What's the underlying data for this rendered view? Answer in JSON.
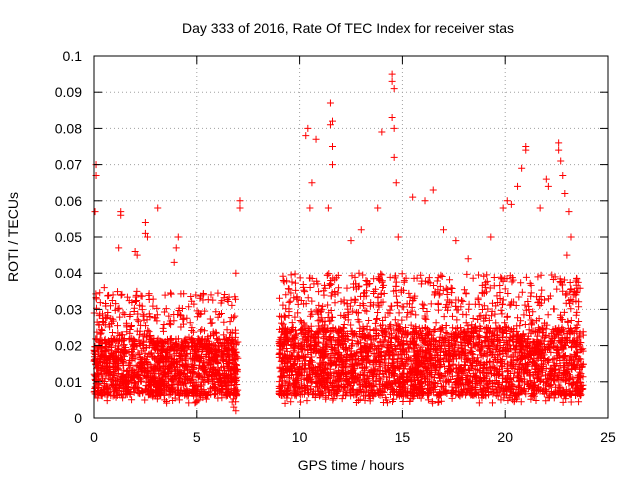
{
  "chart_data": {
    "type": "scatter",
    "title": "Day 333 of 2016, Rate Of TEC Index for receiver stas",
    "xlabel": "GPS time / hours",
    "ylabel": "ROTI / TECUs",
    "xlim": [
      0,
      25
    ],
    "ylim": [
      0,
      0.1
    ],
    "x_ticks": [
      0,
      5,
      10,
      15,
      20,
      25
    ],
    "x_tick_labels": [
      "0",
      "5",
      "10",
      "15",
      "20",
      "25"
    ],
    "y_ticks": [
      0,
      0.01,
      0.02,
      0.03,
      0.04,
      0.05,
      0.06,
      0.07,
      0.08,
      0.09,
      0.1
    ],
    "y_tick_labels": [
      "0",
      "0.01",
      "0.02",
      "0.03",
      "0.04",
      "0.05",
      "0.06",
      "0.07",
      "0.08",
      "0.09",
      "0.1"
    ],
    "grid": true,
    "marker": "+",
    "marker_color": "#ff0000",
    "series": [
      {
        "name": "ROTI",
        "segments": [
          {
            "x_start": 0.0,
            "x_end": 7.0,
            "baseline_min": 0.006,
            "baseline_max": 0.022,
            "typical_max": 0.035
          },
          {
            "x_start": 9.0,
            "x_end": 23.8,
            "baseline_min": 0.006,
            "baseline_max": 0.025,
            "typical_max": 0.04
          }
        ],
        "notable_points": [
          {
            "x": 0.1,
            "y": 0.07
          },
          {
            "x": 0.1,
            "y": 0.067
          },
          {
            "x": 0.05,
            "y": 0.057
          },
          {
            "x": 0.5,
            "y": 0.036
          },
          {
            "x": 1.3,
            "y": 0.057
          },
          {
            "x": 1.3,
            "y": 0.056
          },
          {
            "x": 1.2,
            "y": 0.047
          },
          {
            "x": 2.0,
            "y": 0.046
          },
          {
            "x": 2.1,
            "y": 0.045
          },
          {
            "x": 2.5,
            "y": 0.054
          },
          {
            "x": 2.5,
            "y": 0.051
          },
          {
            "x": 2.6,
            "y": 0.05
          },
          {
            "x": 3.1,
            "y": 0.058
          },
          {
            "x": 4.1,
            "y": 0.05
          },
          {
            "x": 4.0,
            "y": 0.047
          },
          {
            "x": 3.9,
            "y": 0.043
          },
          {
            "x": 7.1,
            "y": 0.06
          },
          {
            "x": 7.1,
            "y": 0.058
          },
          {
            "x": 6.9,
            "y": 0.04
          },
          {
            "x": 6.8,
            "y": 0.003
          },
          {
            "x": 6.9,
            "y": 0.002
          },
          {
            "x": 10.3,
            "y": 0.078
          },
          {
            "x": 10.4,
            "y": 0.08
          },
          {
            "x": 10.8,
            "y": 0.077
          },
          {
            "x": 10.6,
            "y": 0.065
          },
          {
            "x": 10.5,
            "y": 0.058
          },
          {
            "x": 11.5,
            "y": 0.087
          },
          {
            "x": 11.6,
            "y": 0.082
          },
          {
            "x": 11.5,
            "y": 0.081
          },
          {
            "x": 11.6,
            "y": 0.075
          },
          {
            "x": 11.6,
            "y": 0.07
          },
          {
            "x": 11.4,
            "y": 0.058
          },
          {
            "x": 12.5,
            "y": 0.049
          },
          {
            "x": 13.0,
            "y": 0.052
          },
          {
            "x": 13.8,
            "y": 0.058
          },
          {
            "x": 14.0,
            "y": 0.079
          },
          {
            "x": 14.5,
            "y": 0.095
          },
          {
            "x": 14.5,
            "y": 0.093
          },
          {
            "x": 14.6,
            "y": 0.091
          },
          {
            "x": 14.5,
            "y": 0.083
          },
          {
            "x": 14.6,
            "y": 0.08
          },
          {
            "x": 14.6,
            "y": 0.072
          },
          {
            "x": 14.7,
            "y": 0.065
          },
          {
            "x": 14.8,
            "y": 0.05
          },
          {
            "x": 15.5,
            "y": 0.061
          },
          {
            "x": 16.1,
            "y": 0.06
          },
          {
            "x": 16.5,
            "y": 0.063
          },
          {
            "x": 17.0,
            "y": 0.052
          },
          {
            "x": 17.6,
            "y": 0.049
          },
          {
            "x": 18.2,
            "y": 0.044
          },
          {
            "x": 19.3,
            "y": 0.05
          },
          {
            "x": 19.9,
            "y": 0.058
          },
          {
            "x": 20.1,
            "y": 0.06
          },
          {
            "x": 20.3,
            "y": 0.059
          },
          {
            "x": 20.6,
            "y": 0.064
          },
          {
            "x": 20.8,
            "y": 0.069
          },
          {
            "x": 21.0,
            "y": 0.074
          },
          {
            "x": 21.0,
            "y": 0.075
          },
          {
            "x": 21.7,
            "y": 0.058
          },
          {
            "x": 22.0,
            "y": 0.066
          },
          {
            "x": 22.1,
            "y": 0.064
          },
          {
            "x": 22.6,
            "y": 0.076
          },
          {
            "x": 22.6,
            "y": 0.074
          },
          {
            "x": 22.7,
            "y": 0.071
          },
          {
            "x": 22.8,
            "y": 0.067
          },
          {
            "x": 22.9,
            "y": 0.062
          },
          {
            "x": 23.1,
            "y": 0.057
          },
          {
            "x": 23.2,
            "y": 0.05
          },
          {
            "x": 23.0,
            "y": 0.045
          }
        ]
      }
    ]
  }
}
